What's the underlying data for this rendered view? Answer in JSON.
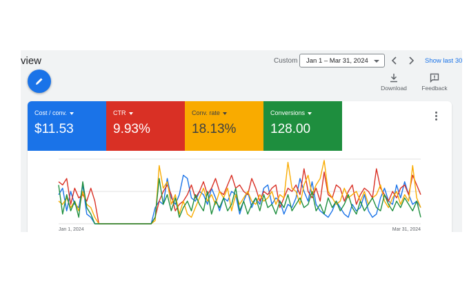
{
  "page_title": "view",
  "toolbar": {
    "custom_label": "Custom",
    "date_range": "Jan 1 – Mar 31, 2024",
    "show_last": "Show last 30",
    "download_label": "Download",
    "feedback_label": "Feedback"
  },
  "metrics": [
    {
      "label": "Cost / conv.",
      "value": "$11.53",
      "color": "#1a73e8",
      "text_color": "#ffffff"
    },
    {
      "label": "CTR",
      "value": "9.93%",
      "color": "#d93025",
      "text_color": "#ffffff"
    },
    {
      "label": "Conv. rate",
      "value": "18.13%",
      "color": "#f9ab00",
      "text_color": "#3c4043"
    },
    {
      "label": "Conversions",
      "value": "128.00",
      "color": "#1e8e3e",
      "text_color": "#ffffff"
    }
  ],
  "chart_data": {
    "type": "line",
    "x_ticks": [
      "Jan 1, 2024",
      "Mar 31, 2024"
    ],
    "x_start": "2024-01-01",
    "x_end": "2024-03-31",
    "ylim": [
      0,
      1
    ],
    "grid": true,
    "series": [
      {
        "color": "#1a73e8",
        "values": [
          0.45,
          0.55,
          0.2,
          0.5,
          0.3,
          0.25,
          0.6,
          0.15,
          0.1,
          0,
          0,
          0,
          0,
          0,
          0,
          0,
          0,
          0,
          0,
          0,
          0,
          0,
          0,
          0,
          0.25,
          0.35,
          0.3,
          0.7,
          0.4,
          0.3,
          0.45,
          0.75,
          0.7,
          0.4,
          0.35,
          0.5,
          0.45,
          0.3,
          0.55,
          0.4,
          0.2,
          0.4,
          0.35,
          0.5,
          0.45,
          0.15,
          0.35,
          0.5,
          0.25,
          0.4,
          0.3,
          0.55,
          0.6,
          0.3,
          0.4,
          0.35,
          0.15,
          0.3,
          0.25,
          0.4,
          0.7,
          0.5,
          0.35,
          0.65,
          0.3,
          0.2,
          0.15,
          0.1,
          0.2,
          0.35,
          0.25,
          0.15,
          0.1,
          0.3,
          0.2,
          0.25,
          0.45,
          0.2,
          0.1,
          0.15,
          0.4,
          0.55,
          0.35,
          0.3,
          0.6,
          0.4,
          0.65,
          0.45,
          0.3,
          0.35,
          0.25
        ]
      },
      {
        "color": "#d93025",
        "values": [
          0.65,
          0.6,
          0.7,
          0.3,
          0.55,
          0.4,
          0.45,
          0.35,
          0.55,
          0.35,
          0,
          0,
          0,
          0,
          0,
          0,
          0,
          0,
          0,
          0,
          0,
          0,
          0,
          0,
          0.1,
          0.35,
          0.5,
          0.6,
          0.45,
          0.2,
          0.3,
          0.35,
          0.45,
          0.6,
          0.4,
          0.5,
          0.65,
          0.45,
          0.55,
          0.7,
          0.5,
          0.45,
          0.6,
          0.75,
          0.55,
          0.6,
          0.5,
          0.45,
          0.7,
          0.55,
          0.35,
          0.5,
          0.45,
          0.55,
          0.6,
          0.25,
          0.4,
          0.55,
          0.5,
          0.6,
          0.45,
          0.85,
          0.5,
          0.4,
          0.55,
          0.35,
          0.8,
          0.45,
          0.4,
          0.6,
          0.55,
          0.35,
          0.5,
          0.6,
          0.3,
          0.45,
          0.55,
          0.5,
          0.4,
          0.85,
          0.55,
          0.45,
          0.35,
          0.5,
          0.4,
          0.55,
          0.6,
          0.45,
          0.75,
          0.6,
          0.45
        ]
      },
      {
        "color": "#f9ab00",
        "values": [
          0.35,
          0.3,
          0.4,
          0.25,
          0.35,
          0.2,
          0.5,
          0.3,
          0.25,
          0.1,
          0,
          0,
          0,
          0,
          0,
          0,
          0,
          0,
          0,
          0,
          0,
          0,
          0,
          0,
          0.05,
          0.9,
          0.55,
          0.65,
          0.3,
          0.45,
          0.15,
          0.35,
          0.15,
          0.1,
          0.25,
          0.4,
          0.55,
          0.35,
          0.45,
          0.3,
          0.5,
          0.4,
          0.55,
          0.2,
          0.45,
          0.3,
          0.4,
          0.5,
          0.35,
          0.3,
          0.45,
          0.35,
          0.4,
          0.5,
          0.3,
          0.45,
          0.4,
          0.95,
          0.55,
          0.5,
          0.3,
          0.6,
          0.75,
          0.45,
          0.6,
          0.7,
          0.98,
          0.5,
          0.4,
          0.3,
          0.35,
          0.55,
          0.4,
          0.45,
          0.5,
          0.35,
          0.5,
          0.3,
          0.4,
          0.45,
          0.6,
          0.35,
          0.25,
          0.4,
          0.5,
          0.3,
          0.45,
          0.35,
          0.9,
          0.4,
          0.25
        ]
      },
      {
        "color": "#1e8e3e",
        "values": [
          0.6,
          0.15,
          0.45,
          0.2,
          0.35,
          0.1,
          0.65,
          0.25,
          0.15,
          0,
          0,
          0,
          0,
          0,
          0,
          0,
          0,
          0,
          0,
          0,
          0,
          0,
          0,
          0,
          0.1,
          0.7,
          0.3,
          0.45,
          0.2,
          0.4,
          0.1,
          0.25,
          0.35,
          0.2,
          0.45,
          0.3,
          0.2,
          0.5,
          0.15,
          0.35,
          0.25,
          0.4,
          0.2,
          0.3,
          0.55,
          0.2,
          0.35,
          0.15,
          0.3,
          0.4,
          0.2,
          0.45,
          0.25,
          0.3,
          0.15,
          0.35,
          0.25,
          0.45,
          0.2,
          0.3,
          0.4,
          0.25,
          0.3,
          0.5,
          0.2,
          0.3,
          0.15,
          0.4,
          0.25,
          0.35,
          0.2,
          0.3,
          0.45,
          0.25,
          0.15,
          0.35,
          0.2,
          0.3,
          0.4,
          0.25,
          0.2,
          0.45,
          0.3,
          0.2,
          0.35,
          0.25,
          0.4,
          0.3,
          0.2,
          0.35,
          0.1
        ]
      }
    ]
  }
}
